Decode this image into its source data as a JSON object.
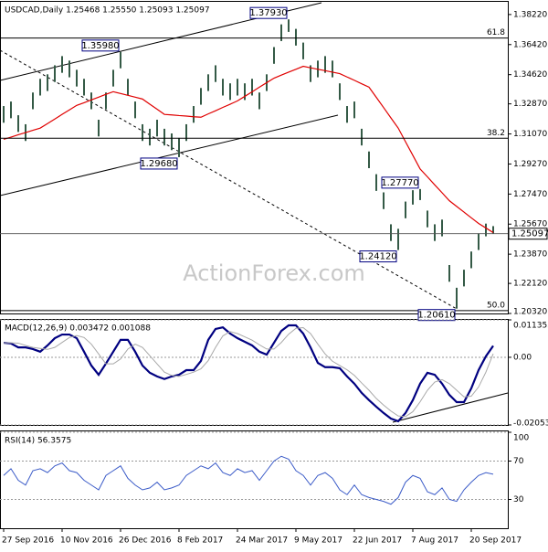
{
  "watermark": "ActionForex.com",
  "chart_data": [
    {
      "type": "ohlc",
      "title": "USDCAD,Daily 1.25468 1.25550 1.25093 1.25097",
      "color": "#345a46",
      "ylim": [
        1.2032,
        1.3898
      ],
      "yticks": [
        {
          "value": 1.3822,
          "label": "1.38220"
        },
        {
          "value": 1.3642,
          "label": "1.36420"
        },
        {
          "value": 1.3462,
          "label": "1.34620"
        },
        {
          "value": 1.3287,
          "label": "1.32870"
        },
        {
          "value": 1.3107,
          "label": "1.31070"
        },
        {
          "value": 1.2927,
          "label": "1.29270"
        },
        {
          "value": 1.2747,
          "label": "1.27470"
        },
        {
          "value": 1.2567,
          "label": "1.25670"
        },
        {
          "value": 1.2387,
          "label": "1.23870"
        },
        {
          "value": 1.2212,
          "label": "1.22120"
        },
        {
          "value": 1.2032,
          "label": "1.20320"
        }
      ],
      "high": [
        1.3274,
        1.3301,
        1.3219,
        1.3165,
        1.3355,
        1.3437,
        1.3464,
        1.3518,
        1.3573,
        1.3546,
        1.3491,
        1.3437,
        1.3355,
        1.3192,
        1.3355,
        1.3491,
        1.3598,
        1.3437,
        1.3301,
        1.3165,
        1.3138,
        1.3192,
        1.3138,
        1.311,
        1.3083,
        1.3165,
        1.3274,
        1.3382,
        1.3464,
        1.3518,
        1.3437,
        1.341,
        1.3437,
        1.341,
        1.3437,
        1.3355,
        1.3464,
        1.3627,
        1.3763,
        1.3793,
        1.3736,
        1.3654,
        1.3518,
        1.3546,
        1.3573,
        1.3546,
        1.341,
        1.3274,
        1.3301,
        1.3138,
        1.3002,
        1.2866,
        1.2757,
        1.2566,
        1.2539,
        1.2702,
        1.277,
        1.2777,
        1.2648,
        1.2566,
        1.2594,
        1.2322,
        1.2186,
        1.2294,
        1.2403,
        1.2512,
        1.257,
        1.2555
      ],
      "low": [
        1.3174,
        1.3201,
        1.3119,
        1.3065,
        1.3255,
        1.3337,
        1.3364,
        1.3418,
        1.3473,
        1.3446,
        1.3391,
        1.3337,
        1.3255,
        1.3092,
        1.3255,
        1.3391,
        1.35,
        1.3337,
        1.3201,
        1.3065,
        1.3038,
        1.3092,
        1.3038,
        1.301,
        1.2968,
        1.3065,
        1.3174,
        1.3282,
        1.3364,
        1.3418,
        1.3337,
        1.331,
        1.3337,
        1.331,
        1.3337,
        1.3255,
        1.3364,
        1.3527,
        1.3663,
        1.3718,
        1.3636,
        1.3554,
        1.3418,
        1.3446,
        1.3473,
        1.3446,
        1.331,
        1.3174,
        1.3201,
        1.3038,
        1.2902,
        1.2766,
        1.2657,
        1.2466,
        1.2412,
        1.2602,
        1.2684,
        1.2711,
        1.2548,
        1.2466,
        1.2494,
        1.2222,
        1.2061,
        1.2194,
        1.2303,
        1.2412,
        1.2494,
        1.2509
      ],
      "ma_color": "#e00000",
      "ma_values": [
        1.3075,
        1.3088,
        1.3102,
        1.3115,
        1.3129,
        1.3142,
        1.3169,
        1.3196,
        1.3224,
        1.3251,
        1.3278,
        1.3294,
        1.3311,
        1.3327,
        1.3344,
        1.336,
        1.3349,
        1.3338,
        1.3327,
        1.3316,
        1.3285,
        1.3255,
        1.3224,
        1.3221,
        1.3217,
        1.3214,
        1.321,
        1.3207,
        1.3227,
        1.3246,
        1.3266,
        1.3285,
        1.3305,
        1.3332,
        1.3359,
        1.3387,
        1.3414,
        1.3441,
        1.3459,
        1.3477,
        1.3494,
        1.3512,
        1.3503,
        1.3494,
        1.3486,
        1.3477,
        1.3468,
        1.3448,
        1.3428,
        1.3407,
        1.3387,
        1.3326,
        1.3265,
        1.3203,
        1.3142,
        1.306,
        1.2979,
        1.2897,
        1.285,
        1.2802,
        1.2755,
        1.2707,
        1.2673,
        1.2639,
        1.2605,
        1.2571,
        1.2544,
        1.2516
      ],
      "last_price": 1.25097,
      "levels": [
        {
          "value": 1.3681,
          "label": "61.8"
        },
        {
          "value": 1.3081,
          "label": "38.2"
        },
        {
          "value": 1.2049,
          "label": "50.0"
        }
      ],
      "annotations": [
        {
          "value": 1.3793,
          "label": "1.37930"
        },
        {
          "value": 1.3598,
          "label": "1.35980"
        },
        {
          "value": 1.2968,
          "label": "1.29680"
        },
        {
          "value": 1.2777,
          "label": "1.27770"
        },
        {
          "value": 1.2412,
          "label": "1.24120"
        },
        {
          "value": 1.2061,
          "label": "1.20610"
        }
      ]
    },
    {
      "type": "line",
      "title": "MACD(12,26,9) 0.003472 0.001088",
      "ylim": [
        -0.020531,
        0.011355
      ],
      "yticks": [
        0.011355,
        {
          "value": 0,
          "label": "0.00"
        },
        -0.020531
      ],
      "series": [
        {
          "color": "#000080",
          "values": [
            0.0044,
            0.0042,
            0.003,
            0.003,
            0.0025,
            0.0017,
            0.0036,
            0.0058,
            0.0069,
            0.0069,
            0.0058,
            0.0017,
            -0.0025,
            -0.0053,
            -0.0019,
            0.0017,
            0.0053,
            0.0053,
            0.0017,
            -0.0025,
            -0.0047,
            -0.0058,
            -0.0066,
            -0.0058,
            -0.0053,
            -0.0039,
            -0.0039,
            -0.0011,
            0.0053,
            0.0086,
            0.0091,
            0.0072,
            0.0058,
            0.0047,
            0.0036,
            0.0017,
            0.0008,
            0.0044,
            0.008,
            0.0097,
            0.0097,
            0.0072,
            0.003,
            -0.0017,
            -0.003,
            -0.003,
            -0.0033,
            -0.0058,
            -0.008,
            -0.0108,
            -0.013,
            -0.015,
            -0.0169,
            -0.0186,
            -0.0194,
            -0.0169,
            -0.013,
            -0.008,
            -0.0047,
            -0.0053,
            -0.008,
            -0.0114,
            -0.0136,
            -0.0136,
            -0.0094,
            -0.0039,
            0.0003,
            0.003472
          ]
        },
        {
          "color": "#a8a8a8",
          "values": [
            0.0044,
            0.0044,
            0.0043,
            0.0036,
            0.003,
            0.0027,
            0.0024,
            0.003,
            0.0045,
            0.006,
            0.0066,
            0.006,
            0.004,
            0.001,
            -0.002,
            -0.002,
            -0.0005,
            0.0025,
            0.004,
            0.003,
            0.0005,
            -0.002,
            -0.0045,
            -0.0055,
            -0.0058,
            -0.0052,
            -0.0045,
            -0.0035,
            -0.001,
            0.003,
            0.0065,
            0.0078,
            0.0072,
            0.0062,
            0.0052,
            0.0038,
            0.0025,
            0.0025,
            0.0045,
            0.007,
            0.0088,
            0.009,
            0.0072,
            0.004,
            0.001,
            -0.0012,
            -0.0025,
            -0.0038,
            -0.0055,
            -0.0078,
            -0.01,
            -0.0125,
            -0.0145,
            -0.0163,
            -0.0178,
            -0.018,
            -0.0165,
            -0.0135,
            -0.01,
            -0.0075,
            -0.0068,
            -0.008,
            -0.01,
            -0.012,
            -0.0118,
            -0.009,
            -0.0045,
            0.001088
          ]
        }
      ]
    },
    {
      "type": "line",
      "title": "RSI(14) 56.3575",
      "ylim": [
        0,
        100
      ],
      "yticks": [
        100,
        70,
        30
      ],
      "series": [
        {
          "color": "#3c5cc8",
          "values": [
            55,
            62,
            50,
            45,
            60,
            62,
            58,
            65,
            68,
            60,
            58,
            50,
            45,
            40,
            55,
            60,
            65,
            52,
            45,
            40,
            42,
            48,
            40,
            42,
            45,
            55,
            60,
            65,
            62,
            68,
            58,
            55,
            62,
            58,
            60,
            50,
            60,
            70,
            75,
            72,
            60,
            55,
            45,
            55,
            58,
            52,
            40,
            35,
            45,
            35,
            32,
            30,
            28,
            25,
            32,
            48,
            55,
            52,
            38,
            35,
            42,
            30,
            28,
            40,
            48,
            55,
            58,
            56.3575
          ]
        }
      ],
      "categories": [
        "27 Sep 2016",
        null,
        null,
        null,
        null,
        null,
        null,
        null,
        "10 Nov 2016",
        null,
        null,
        null,
        null,
        null,
        null,
        null,
        "26 Dec 2016",
        null,
        null,
        null,
        null,
        null,
        null,
        null,
        "8 Feb 2017",
        null,
        null,
        null,
        null,
        null,
        null,
        null,
        "24 Mar 2017",
        null,
        null,
        null,
        null,
        null,
        null,
        null,
        "9 May 2017",
        null,
        null,
        null,
        null,
        null,
        null,
        null,
        "22 Jun 2017",
        null,
        null,
        null,
        null,
        null,
        null,
        null,
        "7 Aug 2017",
        null,
        null,
        null,
        null,
        null,
        null,
        null,
        "20 Sep 2017",
        null,
        null,
        null
      ]
    }
  ]
}
